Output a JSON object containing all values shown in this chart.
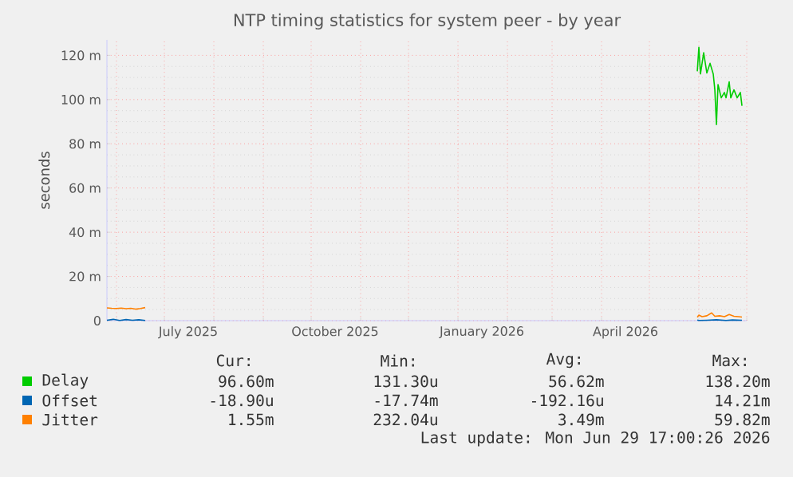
{
  "chart_data": {
    "type": "line",
    "title": "NTP timing statistics for system peer - by year",
    "ylabel": "seconds",
    "xlim": [
      "2025-05-26",
      "2026-07-01"
    ],
    "xticks": [
      {
        "value": "2025-06-01",
        "label": null
      },
      {
        "value": "2025-07-01",
        "label": null
      },
      {
        "value": "2025-07-16",
        "label": "July 2025"
      },
      {
        "value": "2025-08-01",
        "label": null
      },
      {
        "value": "2025-09-01",
        "label": null
      },
      {
        "value": "2025-10-01",
        "label": null
      },
      {
        "value": "2025-10-16",
        "label": "October 2025"
      },
      {
        "value": "2025-11-01",
        "label": null
      },
      {
        "value": "2025-12-01",
        "label": null
      },
      {
        "value": "2026-01-01",
        "label": null
      },
      {
        "value": "2026-01-16",
        "label": "January 2026"
      },
      {
        "value": "2026-02-01",
        "label": null
      },
      {
        "value": "2026-03-01",
        "label": null
      },
      {
        "value": "2026-04-01",
        "label": null
      },
      {
        "value": "2026-04-16",
        "label": "April 2026"
      },
      {
        "value": "2026-05-01",
        "label": null
      },
      {
        "value": "2026-06-01",
        "label": null
      },
      {
        "value": "2026-07-01",
        "label": null
      }
    ],
    "ylim": [
      0,
      127
    ],
    "yticks": [
      0,
      {
        "value": 20,
        "label": "20 m"
      },
      {
        "value": 40,
        "label": "40 m"
      },
      {
        "value": 60,
        "label": "60 m"
      },
      {
        "value": 80,
        "label": "80 m"
      },
      {
        "value": 100,
        "label": "100 m"
      },
      {
        "value": 120,
        "label": "120 m"
      }
    ],
    "grid": true,
    "legend": "bottom",
    "marker": "none",
    "line_style": "solid",
    "series": [
      {
        "name": "Delay",
        "color": "#00cc00",
        "x": [
          "2026-05-31",
          "2026-06-01",
          "2026-06-02",
          "2026-06-04",
          "2026-06-06",
          "2026-06-08",
          "2026-06-10",
          "2026-06-11",
          "2026-06-12",
          "2026-06-13",
          "2026-06-15",
          "2026-06-17",
          "2026-06-18",
          "2026-06-20",
          "2026-06-21",
          "2026-06-23",
          "2026-06-25",
          "2026-06-27",
          "2026-06-28"
        ],
        "values": [
          112.8,
          123.6,
          111.6,
          121.2,
          112,
          116.4,
          111.6,
          104.4,
          88.7,
          106.8,
          100.8,
          103.2,
          100.8,
          108,
          100.8,
          104.4,
          100.8,
          103.2,
          97.2
        ]
      },
      {
        "name": "Offset",
        "color": "#0066b3",
        "x": [
          "2025-05-26",
          "2025-05-30",
          "2025-06-03",
          "2025-06-07",
          "2025-06-11",
          "2025-06-15",
          "2025-06-19",
          "2025-06-20",
          "2026-05-31",
          "2026-06-01",
          "2026-06-06",
          "2026-06-12",
          "2026-06-18",
          "2026-06-22",
          "2026-06-28"
        ],
        "values": [
          0.2,
          0.6,
          0.1,
          0.5,
          0.2,
          0.4,
          0.1,
          null,
          0.3,
          0.1,
          0.2,
          0.4,
          0.1,
          0.3,
          0.2
        ]
      },
      {
        "name": "Jitter",
        "color": "#ff8000",
        "x": [
          "2025-05-26",
          "2025-05-29",
          "2025-06-01",
          "2025-06-04",
          "2025-06-07",
          "2025-06-10",
          "2025-06-13",
          "2025-06-16",
          "2025-06-19",
          "2025-06-20",
          "2026-05-31",
          "2026-06-01",
          "2026-06-03",
          "2026-06-06",
          "2026-06-09",
          "2026-06-11",
          "2026-06-14",
          "2026-06-17",
          "2026-06-20",
          "2026-06-23",
          "2026-06-26",
          "2026-06-28"
        ],
        "values": [
          5.8,
          5.6,
          5.5,
          5.7,
          5.4,
          5.6,
          5.2,
          5.5,
          5.9,
          null,
          1.5,
          2.5,
          1.8,
          2.2,
          3.5,
          2.0,
          2.2,
          1.8,
          2.8,
          2.0,
          1.8,
          1.6
        ]
      }
    ],
    "annotations": [
      "Cur:",
      "Min:",
      "Avg:",
      "Max:",
      "96.60m",
      "131.30u",
      "56.62m",
      "138.20m",
      "-18.90u",
      "-17.74m",
      "-192.16u",
      "14.21m",
      "1.55m",
      "232.04u",
      "3.49m",
      "59.82m",
      "Last update: Mon Jun 29 17:00:26 2026"
    ]
  }
}
